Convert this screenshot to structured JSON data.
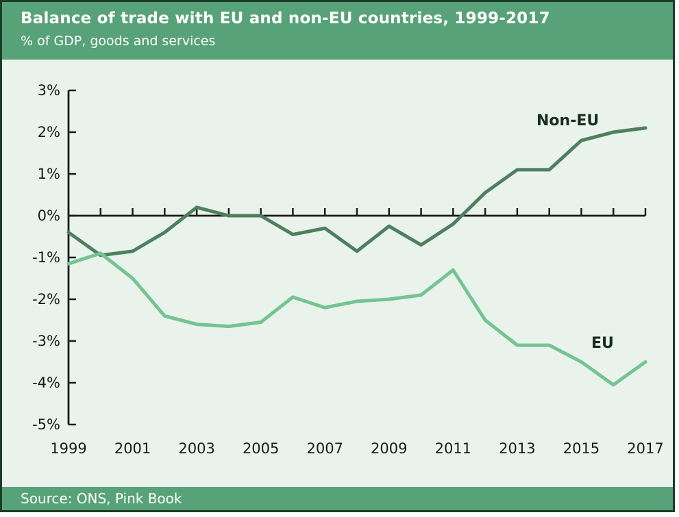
{
  "theme": {
    "header_bg": "#57a278",
    "border_color": "#1d3b27",
    "plot_bg": "#e9f3ec",
    "axis_color": "#1a1a1a",
    "series_label_color": "#1a2b20",
    "text_on_green": "#ffffff"
  },
  "chart_data": {
    "type": "line",
    "title": "Balance of trade with EU and non-EU countries, 1999-2017",
    "subtitle": "% of GDP, goods and services",
    "source": "Source: ONS, Pink Book",
    "x": [
      1999,
      2000,
      2001,
      2002,
      2003,
      2004,
      2005,
      2006,
      2007,
      2008,
      2009,
      2010,
      2011,
      2012,
      2013,
      2014,
      2015,
      2016,
      2017
    ],
    "x_tick_labels": [
      "1999",
      "2001",
      "2003",
      "2005",
      "2007",
      "2009",
      "2011",
      "2013",
      "2015",
      "2017"
    ],
    "ylim": [
      -5,
      3
    ],
    "y_tick_step": 1,
    "y_tick_suffix": "%",
    "grid": false,
    "legend_position": "inline-labels",
    "series": [
      {
        "name": "Non-EU",
        "color": "#4e7f60",
        "values": [
          -0.4,
          -0.95,
          -0.85,
          -0.4,
          0.2,
          0.0,
          0.0,
          -0.45,
          -0.3,
          -0.85,
          -0.25,
          -0.7,
          -0.2,
          0.55,
          1.1,
          1.1,
          1.8,
          2.0,
          2.1
        ]
      },
      {
        "name": "EU",
        "color": "#74c492",
        "values": [
          -1.15,
          -0.9,
          -1.5,
          -2.4,
          -2.6,
          -2.65,
          -2.55,
          -1.95,
          -2.2,
          -2.05,
          -2.0,
          -1.9,
          -1.3,
          -2.5,
          -3.1,
          -3.1,
          -3.5,
          -4.05,
          -3.5
        ]
      }
    ]
  }
}
